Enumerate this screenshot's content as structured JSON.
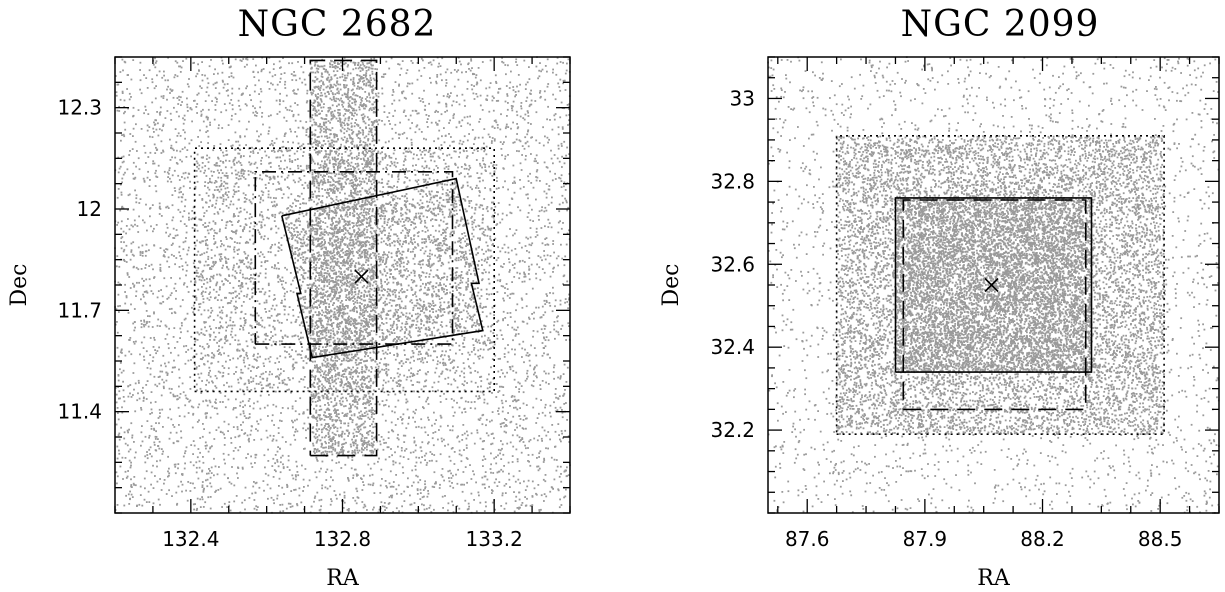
{
  "chart_data": [
    {
      "type": "scatter",
      "title": "NGC 2682",
      "xlabel": "RA",
      "ylabel": "Dec",
      "xlim": [
        132.2,
        133.4
      ],
      "ylim": [
        11.1,
        12.45
      ],
      "xticks": [
        132.4,
        132.8,
        133.2
      ],
      "yticks": [
        11.4,
        11.7,
        12.0,
        12.3
      ],
      "xtick_labels": [
        "132.4",
        "132.8",
        "133.2"
      ],
      "ytick_labels": [
        "11.4",
        "11.7",
        "12",
        "12.3"
      ],
      "point_color": "#9a9a9a",
      "center": {
        "ra": 132.85,
        "dec": 11.8
      },
      "background_density": 5600,
      "footprints": [
        {
          "style": "dotted",
          "density": 0,
          "polygon": [
            [
              132.41,
              11.46
            ],
            [
              133.2,
              11.46
            ],
            [
              133.2,
              12.18
            ],
            [
              132.41,
              12.18
            ],
            [
              132.41,
              11.46
            ]
          ]
        },
        {
          "style": "dashdot",
          "density": 0,
          "polygon": [
            [
              132.57,
              11.6
            ],
            [
              133.09,
              11.6
            ],
            [
              133.09,
              12.11
            ],
            [
              132.57,
              12.11
            ],
            [
              132.57,
              11.6
            ]
          ]
        },
        {
          "style": "dashed",
          "density": 2600,
          "polygon": [
            [
              132.715,
              11.27
            ],
            [
              132.89,
              11.27
            ],
            [
              132.89,
              12.44
            ],
            [
              132.715,
              12.44
            ],
            [
              132.715,
              11.27
            ]
          ]
        },
        {
          "style": "solid",
          "density": 0,
          "polygon": [
            [
              132.64,
              11.98
            ],
            [
              133.1,
              12.09
            ],
            [
              133.16,
              11.78
            ],
            [
              133.14,
              11.78
            ],
            [
              133.17,
              11.64
            ],
            [
              132.72,
              11.56
            ],
            [
              132.68,
              11.75
            ],
            [
              132.69,
              11.75
            ],
            [
              132.64,
              11.98
            ]
          ]
        }
      ],
      "extra_regions": [
        {
          "polygon": [
            [
              132.41,
              11.46
            ],
            [
              133.2,
              11.46
            ],
            [
              133.2,
              12.18
            ],
            [
              132.41,
              12.18
            ]
          ],
          "density": 1700
        },
        {
          "polygon": [
            [
              132.64,
              11.98
            ],
            [
              133.1,
              12.09
            ],
            [
              133.16,
              11.78
            ],
            [
              133.17,
              11.64
            ],
            [
              132.72,
              11.56
            ],
            [
              132.68,
              11.75
            ]
          ],
          "density": 1300
        }
      ]
    },
    {
      "type": "scatter",
      "title": "NGC 2099",
      "xlabel": "RA",
      "ylabel": "Dec",
      "xlim": [
        87.5,
        88.65
      ],
      "ylim": [
        32.0,
        33.1
      ],
      "xticks": [
        87.6,
        87.9,
        88.2,
        88.5
      ],
      "yticks": [
        32.2,
        32.4,
        32.6,
        32.8,
        33.0
      ],
      "xtick_labels": [
        "87.6",
        "87.9",
        "88.2",
        "88.5"
      ],
      "ytick_labels": [
        "32.2",
        "32.4",
        "32.6",
        "32.8",
        "33"
      ],
      "point_color": "#9a9a9a",
      "center": {
        "ra": 88.07,
        "dec": 32.55
      },
      "background_density": 2600,
      "footprints": [
        {
          "style": "dotted",
          "density": 0,
          "polygon": [
            [
              87.675,
              32.19
            ],
            [
              88.51,
              32.19
            ],
            [
              88.51,
              32.91
            ],
            [
              87.675,
              32.91
            ],
            [
              87.675,
              32.19
            ]
          ]
        },
        {
          "style": "solid",
          "density": 0,
          "polygon": [
            [
              87.825,
              32.34
            ],
            [
              88.325,
              32.34
            ],
            [
              88.325,
              32.76
            ],
            [
              87.825,
              32.76
            ],
            [
              87.825,
              32.34
            ]
          ]
        },
        {
          "style": "dashed",
          "density": 0,
          "polygon": [
            [
              87.845,
              32.25
            ],
            [
              88.31,
              32.25
            ],
            [
              88.31,
              32.755
            ],
            [
              87.845,
              32.755
            ],
            [
              87.845,
              32.25
            ]
          ]
        }
      ],
      "extra_regions": [
        {
          "polygon": [
            [
              87.675,
              32.19
            ],
            [
              88.51,
              32.19
            ],
            [
              88.51,
              32.91
            ],
            [
              87.675,
              32.91
            ]
          ],
          "density": 9500
        },
        {
          "polygon": [
            [
              87.825,
              32.34
            ],
            [
              88.325,
              32.34
            ],
            [
              88.325,
              32.76
            ],
            [
              87.825,
              32.76
            ]
          ],
          "density": 5200
        }
      ]
    }
  ]
}
